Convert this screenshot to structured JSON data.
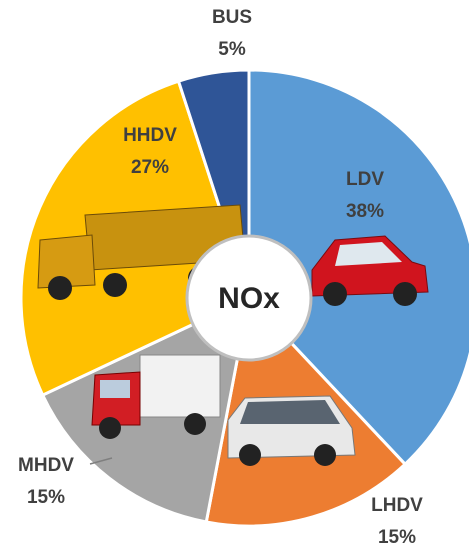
{
  "chart_data": {
    "type": "pie",
    "categories": [
      "LDV",
      "LHDV",
      "MHDV",
      "HHDV",
      "BUS"
    ],
    "values": [
      38,
      15,
      15,
      27,
      5
    ],
    "value_labels": [
      "38%",
      "15%",
      "15%",
      "27%",
      "5%"
    ],
    "colors": [
      "#5b9bd5",
      "#ed7d31",
      "#a5a5a5",
      "#ffc000",
      "#2f5597"
    ],
    "center_label": "NOx"
  }
}
